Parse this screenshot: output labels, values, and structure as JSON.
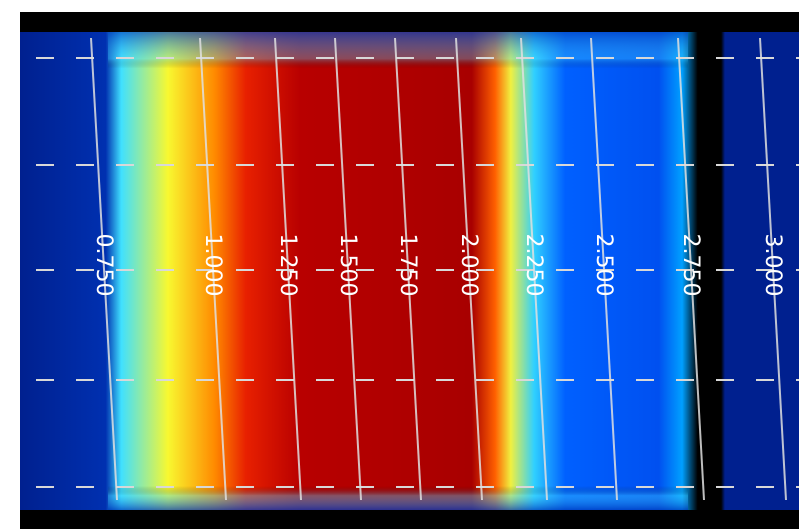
{
  "contour_labels": [
    "0.750",
    "1.000",
    "1.250",
    "1.500",
    "1.750",
    "2.000",
    "2.250",
    "2.500",
    "2.750",
    "3.000"
  ]
}
